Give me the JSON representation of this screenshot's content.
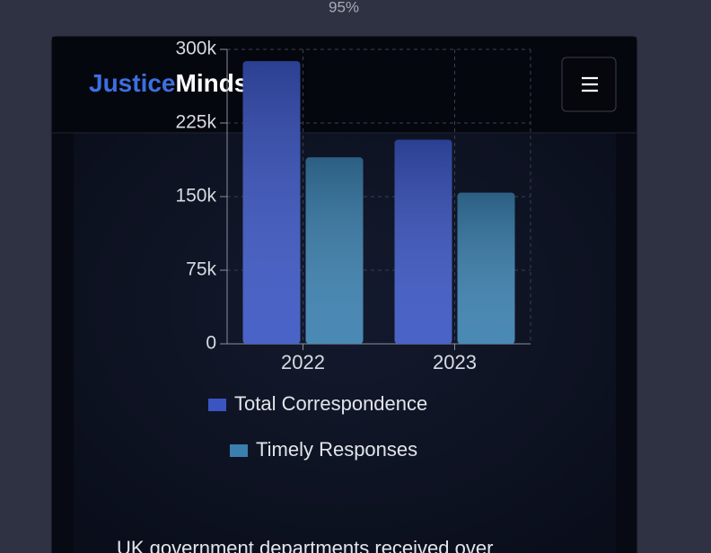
{
  "zoom": "95%",
  "brand": {
    "first": "Justice",
    "second": "Minds"
  },
  "paragraph": "UK government departments received over",
  "chart_data": {
    "type": "bar",
    "categories": [
      "2022",
      "2023"
    ],
    "series": [
      {
        "name": "Total Correspondence",
        "color": "#3a55c2",
        "values": [
          288000,
          208000
        ]
      },
      {
        "name": "Timely Responses",
        "color": "#3a7fae",
        "values": [
          190000,
          154000
        ]
      }
    ],
    "ylim": [
      0,
      300000
    ],
    "yticks": [
      0,
      {
        "value": 75000,
        "label": "75k"
      },
      {
        "value": 150000,
        "label": "150k"
      },
      {
        "value": 225000,
        "label": "225k"
      },
      {
        "value": 300000,
        "label": "300k"
      }
    ],
    "grid": true
  }
}
